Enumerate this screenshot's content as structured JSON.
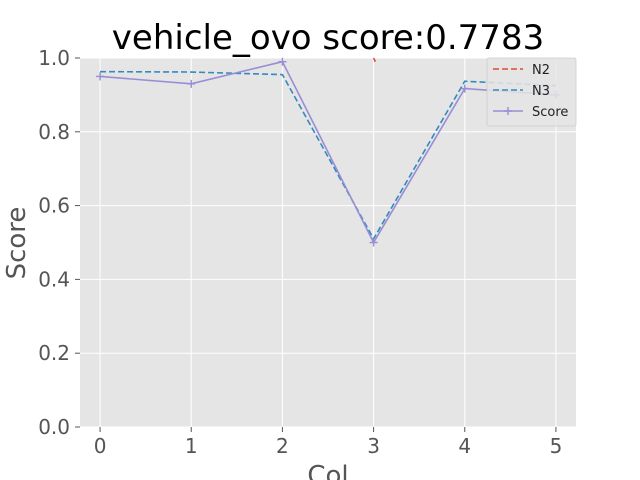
{
  "chart_data": {
    "type": "line",
    "title": "vehicle_ovo score:0.7783",
    "xlabel": "Col",
    "ylabel": "Score",
    "xlim": [
      -0.22,
      5.22
    ],
    "ylim": [
      0.0,
      1.0
    ],
    "x_ticks": [
      0,
      1,
      2,
      3,
      4,
      5
    ],
    "x_tick_labels": [
      "0",
      "1",
      "2",
      "3",
      "4",
      "5"
    ],
    "y_ticks": [
      0.0,
      0.2,
      0.4,
      0.6,
      0.8,
      1.0
    ],
    "y_tick_labels": [
      "0.0",
      "0.2",
      "0.4",
      "0.6",
      "0.8",
      "1.0"
    ],
    "grid": true,
    "legend_position": "top-right",
    "series": [
      {
        "name": "N2",
        "color": "#E24A33",
        "dash": "dashed",
        "marker": "none",
        "x": [
          3,
          3.02
        ],
        "y": [
          1.0,
          0.99
        ]
      },
      {
        "name": "N3",
        "color": "#348ABD",
        "dash": "dashed",
        "marker": "none",
        "x": [
          0,
          1,
          2,
          3,
          4,
          5
        ],
        "y": [
          0.963,
          0.962,
          0.955,
          0.51,
          0.937,
          0.925
        ]
      },
      {
        "name": "Score",
        "color": "#988ED5",
        "dash": "solid",
        "marker": "plus",
        "x": [
          0,
          1,
          2,
          3,
          4,
          5
        ],
        "y": [
          0.95,
          0.93,
          0.99,
          0.5,
          0.917,
          0.9
        ]
      }
    ]
  }
}
